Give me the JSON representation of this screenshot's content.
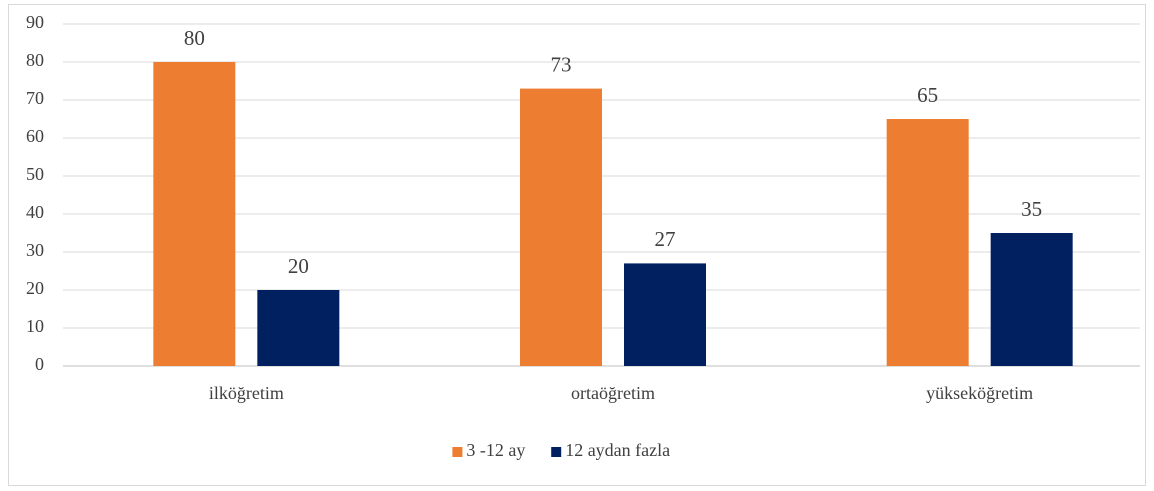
{
  "chart_data": {
    "type": "bar",
    "categories": [
      "ilköğretim",
      "ortaöğretim",
      "yükseköğretim"
    ],
    "series": [
      {
        "name": "3 -12 ay",
        "color": "#ed7d31",
        "values": [
          80,
          73,
          65
        ]
      },
      {
        "name": "12 aydan fazla",
        "color": "#002060",
        "values": [
          20,
          27,
          35
        ]
      }
    ],
    "ylim": [
      0,
      90
    ],
    "yticks": [
      0,
      10,
      20,
      30,
      40,
      50,
      60,
      70,
      80,
      90
    ],
    "grid": true,
    "legend": "bottom"
  }
}
